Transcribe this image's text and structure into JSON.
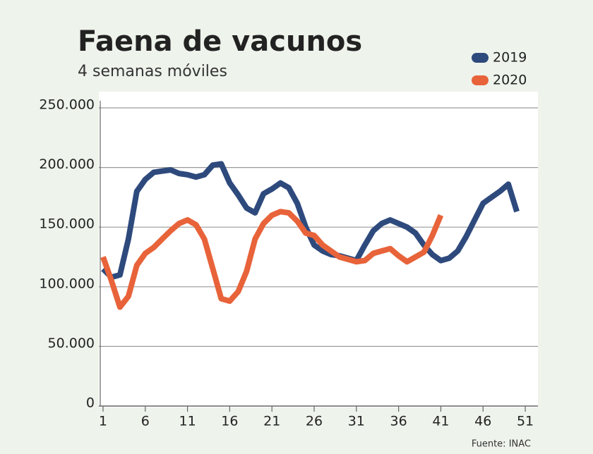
{
  "chart_data": {
    "type": "line",
    "title": "Faena de vacunos",
    "subtitle": "4 semanas móviles",
    "source": "Fuente: INAC",
    "x": [
      1,
      2,
      3,
      4,
      5,
      6,
      7,
      8,
      9,
      10,
      11,
      12,
      13,
      14,
      15,
      16,
      17,
      18,
      19,
      20,
      21,
      22,
      23,
      24,
      25,
      26,
      27,
      28,
      29,
      30,
      31,
      32,
      33,
      34,
      35,
      36,
      37,
      38,
      39,
      40,
      41,
      42,
      43,
      44,
      45,
      46,
      47,
      48,
      49,
      50
    ],
    "series": [
      {
        "name": "2019",
        "color": "#2e4a7d",
        "values": [
          115000,
          108000,
          110000,
          140000,
          180000,
          190000,
          196000,
          197000,
          198000,
          195000,
          194000,
          192000,
          194000,
          202000,
          203000,
          187000,
          177000,
          166000,
          162000,
          178000,
          182000,
          187000,
          183000,
          170000,
          150000,
          135000,
          130000,
          127000,
          126000,
          124000,
          122000,
          135000,
          147000,
          153000,
          156000,
          153000,
          150000,
          145000,
          135000,
          127000,
          122000,
          124000,
          130000,
          142000,
          156000,
          170000,
          175000,
          180000,
          186000,
          163000
        ]
      },
      {
        "name": "2020",
        "color": "#e8633a",
        "values": [
          125000,
          105000,
          83000,
          92000,
          118000,
          128000,
          133000,
          140000,
          147000,
          153000,
          156000,
          152000,
          140000,
          115000,
          90000,
          88000,
          96000,
          113000,
          140000,
          153000,
          160000,
          163000,
          162000,
          155000,
          145000,
          143000,
          135000,
          130000,
          125000,
          123000,
          121000,
          122000,
          128000,
          130000,
          132000,
          126000,
          121000,
          125000,
          129000,
          143000,
          160000,
          null,
          null,
          null,
          null,
          null,
          null,
          null,
          null,
          null
        ]
      }
    ],
    "xlim": [
      0.5,
      52.5
    ],
    "xticks": [
      1,
      6,
      11,
      16,
      21,
      26,
      31,
      36,
      41,
      46,
      51
    ],
    "ylim": [
      0,
      250000
    ],
    "yticks": [
      0,
      {
        "value": 50000,
        "label": "50.000"
      },
      {
        "value": 100000,
        "label": "100.000"
      },
      {
        "value": 150000,
        "label": "150.000"
      },
      {
        "value": 200000,
        "label": "200.000"
      },
      {
        "value": 250000,
        "label": "250.000"
      }
    ],
    "grid": true
  }
}
